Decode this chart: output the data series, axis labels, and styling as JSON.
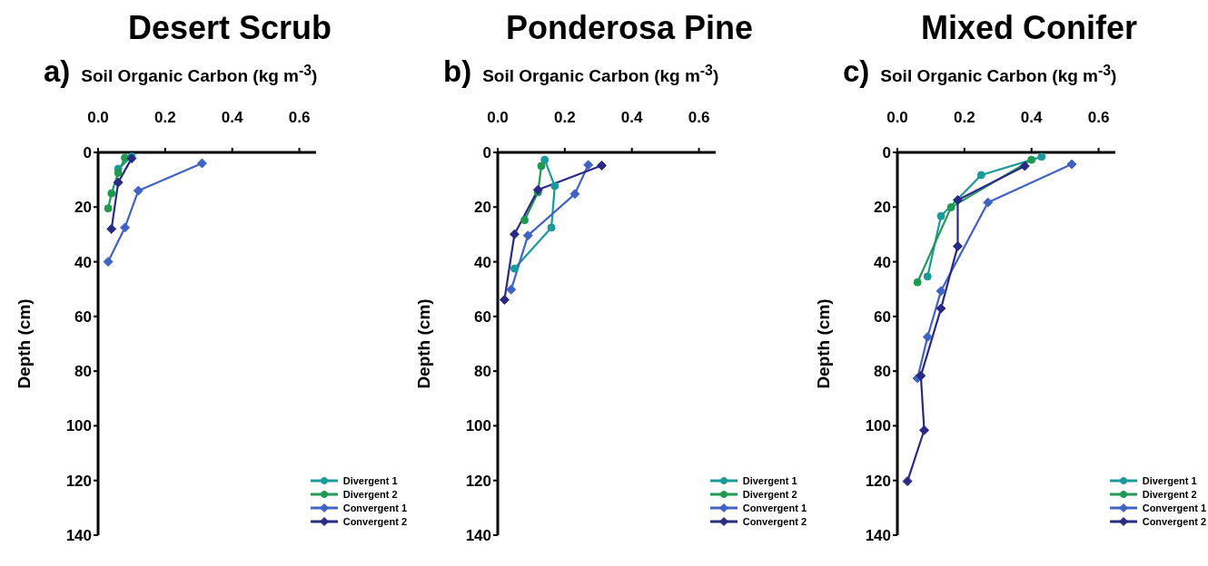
{
  "chart_data": [
    {
      "type": "line",
      "title": "Desert Scrub",
      "subtitle": "a)",
      "xlabel": "Soil Organic Carbon (kg m$^{-3}$)",
      "ylabel": "Depth (cm)",
      "xlim": [
        0,
        0.65
      ],
      "xticks": [
        {
          "value": 0,
          "label": "0.0"
        },
        {
          "value": 0.2,
          "label": "0.2"
        },
        {
          "value": 0.4,
          "label": "0.4"
        },
        {
          "value": 0.6,
          "label": "0.6"
        }
      ],
      "ylim": [
        140,
        0
      ],
      "yticks": [
        0,
        20,
        40,
        60,
        80,
        100,
        120,
        140
      ],
      "legend": "bottom right",
      "line_style": "solid",
      "series": [
        {
          "name": "Divergent 1",
          "color": "#1a9a9a",
          "marker": "circle",
          "x": [
            0.1,
            0.06
          ],
          "values": [
            1.5,
            6
          ]
        },
        {
          "name": "Divergent 2",
          "color": "#1f9a50",
          "marker": "circle",
          "x": [
            0.08,
            0.06,
            0.04,
            0.03
          ],
          "values": [
            2,
            7.5,
            15,
            20.5
          ]
        },
        {
          "name": "Convergent 1",
          "color": "#4062c4",
          "marker": "diamond",
          "x": [
            0.31,
            0.12,
            0.08,
            0.03
          ],
          "values": [
            4,
            14,
            27.5,
            40
          ]
        },
        {
          "name": "Convergent 2",
          "color": "#2a2a84",
          "marker": "diamond",
          "x": [
            0.1,
            0.06,
            0.04
          ],
          "values": [
            2.2,
            11,
            28
          ]
        }
      ]
    },
    {
      "type": "line",
      "title": "Ponderosa Pine",
      "subtitle": "b)",
      "xlabel": "Soil Organic Carbon (kg m$^{-3}$)",
      "ylabel": "Depth (cm)",
      "xlim": [
        0,
        0.65
      ],
      "xticks": [
        {
          "value": 0,
          "label": "0.0"
        },
        {
          "value": 0.2,
          "label": "0.2"
        },
        {
          "value": 0.4,
          "label": "0.4"
        },
        {
          "value": 0.6,
          "label": "0.6"
        }
      ],
      "ylim": [
        140,
        0
      ],
      "yticks": [
        0,
        20,
        40,
        60,
        80,
        100,
        120,
        140
      ],
      "legend": "bottom right",
      "line_style": "solid",
      "series": [
        {
          "name": "Divergent 1",
          "color": "#1a9a9a",
          "marker": "circle",
          "x": [
            0.14,
            0.17,
            0.16,
            0.05
          ],
          "values": [
            2.7,
            12.3,
            27.5,
            42.5
          ]
        },
        {
          "name": "Divergent 2",
          "color": "#1f9a50",
          "marker": "circle",
          "x": [
            0.13,
            0.12,
            0.08
          ],
          "values": [
            5,
            14.6,
            24.8
          ]
        },
        {
          "name": "Convergent 1",
          "color": "#4062c4",
          "marker": "diamond",
          "x": [
            0.27,
            0.23,
            0.09,
            0.04
          ],
          "values": [
            4.6,
            15.2,
            30.4,
            50.2
          ]
        },
        {
          "name": "Convergent 2",
          "color": "#2a2a84",
          "marker": "diamond",
          "x": [
            0.31,
            0.12,
            0.05,
            0.02
          ],
          "values": [
            4.8,
            13.7,
            29.9,
            53.9
          ]
        }
      ]
    },
    {
      "type": "line",
      "title": "Mixed Conifer",
      "subtitle": "c)",
      "xlabel": "Soil Organic Carbon (kg m$^{-3}$)",
      "ylabel": "Depth (cm)",
      "xlim": [
        0,
        0.65
      ],
      "xticks": [
        {
          "value": 0,
          "label": "0.0"
        },
        {
          "value": 0.2,
          "label": "0.2"
        },
        {
          "value": 0.4,
          "label": "0.4"
        },
        {
          "value": 0.6,
          "label": "0.6"
        }
      ],
      "ylim": [
        140,
        0
      ],
      "yticks": [
        0,
        20,
        40,
        60,
        80,
        100,
        120,
        140
      ],
      "legend": "bottom right",
      "line_style": "solid",
      "series": [
        {
          "name": "Divergent 1",
          "color": "#1a9a9a",
          "marker": "circle",
          "x": [
            0.43,
            0.25,
            0.13,
            0.09
          ],
          "values": [
            1.6,
            8.3,
            23.3,
            45.4
          ]
        },
        {
          "name": "Divergent 2",
          "color": "#1f9a50",
          "marker": "circle",
          "x": [
            0.4,
            0.16,
            0.06
          ],
          "values": [
            2.7,
            20.1,
            47.5
          ]
        },
        {
          "name": "Convergent 1",
          "color": "#4062c4",
          "marker": "diamond",
          "x": [
            0.52,
            0.27,
            0.13,
            0.09,
            0.06
          ],
          "values": [
            4.3,
            18.3,
            50.7,
            67.5,
            82.6
          ]
        },
        {
          "name": "Convergent 2",
          "color": "#2a2a84",
          "marker": "diamond",
          "x": [
            0.38,
            0.18,
            0.18,
            0.13,
            0.07,
            0.08,
            0.03
          ],
          "values": [
            5,
            17.4,
            34.3,
            57.1,
            81.7,
            101.6,
            120.3
          ]
        }
      ]
    }
  ]
}
